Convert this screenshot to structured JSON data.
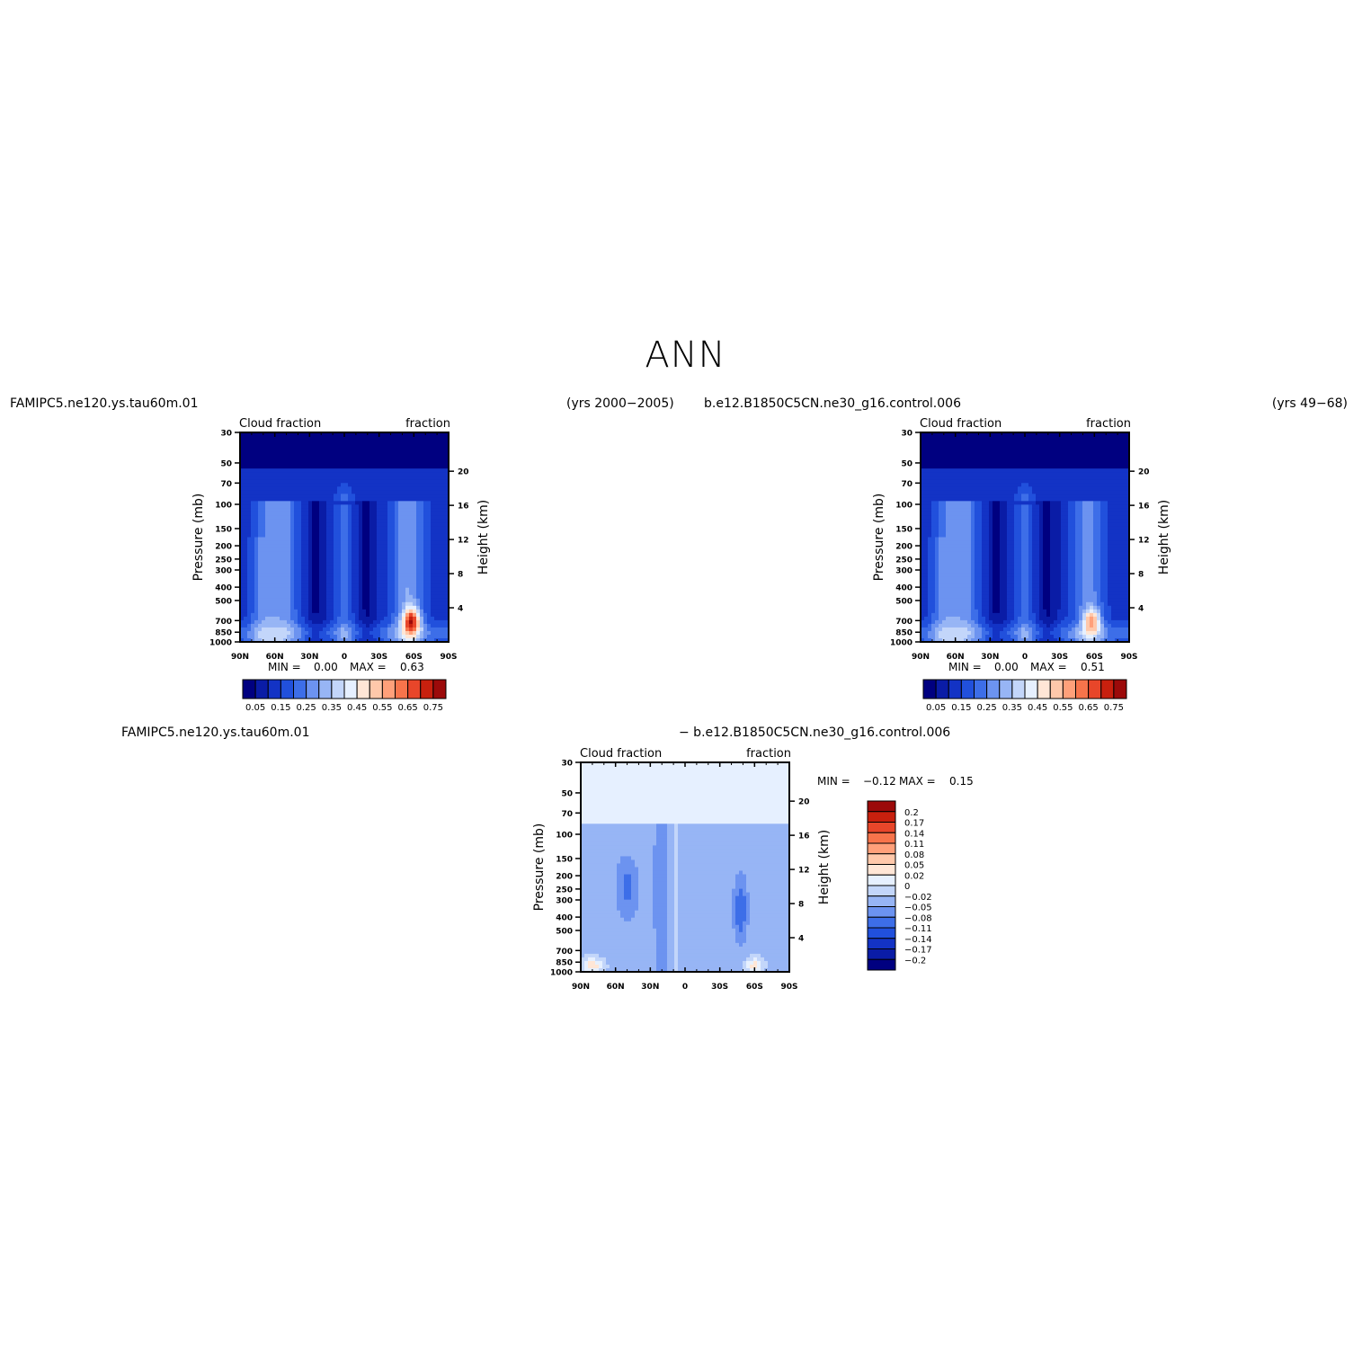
{
  "page_title": "ANN",
  "top_captions": {
    "left_case": "FAMIPC5.ne120.ys.tau60m.01",
    "left_years": "(yrs 2000−2005)",
    "right_case": "b.e12.B1850C5CN.ne30_g16.control.006",
    "right_years": "(yrs 49−68)"
  },
  "diff_captions": {
    "left": "FAMIPC5.ne120.ys.tau60m.01",
    "right": "− b.e12.B1850C5CN.ne30_g16.control.006"
  },
  "colors": {
    "abs_palette": [
      "#000080",
      "#0a1ca6",
      "#1333c5",
      "#2150dc",
      "#3d6ee8",
      "#6c93f0",
      "#97b5f5",
      "#c3d6fa",
      "#e6f0ff",
      "#ffe6d6",
      "#ffc8aa",
      "#ffa07a",
      "#f7744b",
      "#e8462a",
      "#c8200e",
      "#9c0a0a"
    ],
    "diff_palette": [
      "#000080",
      "#0a1ca6",
      "#1333c5",
      "#2150dc",
      "#3d6ee8",
      "#6c93f0",
      "#97b5f5",
      "#c3d6fa",
      "#e6f0ff",
      "#ffe6d6",
      "#ffc8aa",
      "#ffa07a",
      "#f7744b",
      "#e8462a",
      "#c8200e",
      "#9c0a0a"
    ]
  },
  "chart_data": [
    {
      "type": "heatmap",
      "title_left": "Cloud fraction",
      "title_right": "fraction",
      "xlabel": "",
      "ylabel": "Pressure (mb)",
      "ylabel_right": "Height (km)",
      "x_ticks": [
        "90N",
        "60N",
        "30N",
        "0",
        "30S",
        "60S",
        "90S"
      ],
      "y_ticks": [
        30,
        50,
        70,
        100,
        150,
        200,
        250,
        300,
        400,
        500,
        700,
        850,
        1000
      ],
      "y_ticks_right": [
        20,
        16,
        12,
        8,
        4
      ],
      "xlim": [
        90,
        -90
      ],
      "ylim": [
        1000,
        30
      ],
      "y_scale": "log",
      "min_label": "MIN =",
      "min_value": "0.00",
      "max_label": "MAX =",
      "max_value": "0.63",
      "colorbar_labels": [
        "0.05",
        "0.15",
        "0.25",
        "0.35",
        "0.45",
        "0.55",
        "0.65",
        "0.75"
      ]
    },
    {
      "type": "heatmap",
      "title_left": "Cloud fraction",
      "title_right": "fraction",
      "xlabel": "",
      "ylabel": "Pressure (mb)",
      "ylabel_right": "Height (km)",
      "x_ticks": [
        "90N",
        "60N",
        "30N",
        "0",
        "30S",
        "60S",
        "90S"
      ],
      "y_ticks": [
        30,
        50,
        70,
        100,
        150,
        200,
        250,
        300,
        400,
        500,
        700,
        850,
        1000
      ],
      "y_ticks_right": [
        20,
        16,
        12,
        8,
        4
      ],
      "xlim": [
        90,
        -90
      ],
      "ylim": [
        1000,
        30
      ],
      "y_scale": "log",
      "min_label": "MIN =",
      "min_value": "0.00",
      "max_label": "MAX =",
      "max_value": "0.51",
      "colorbar_labels": [
        "0.05",
        "0.15",
        "0.25",
        "0.35",
        "0.45",
        "0.55",
        "0.65",
        "0.75"
      ]
    },
    {
      "type": "heatmap",
      "title_left": "Cloud fraction",
      "title_right": "fraction",
      "xlabel": "",
      "ylabel": "Pressure (mb)",
      "ylabel_right": "Height (km)",
      "x_ticks": [
        "90N",
        "60N",
        "30N",
        "0",
        "30S",
        "60S",
        "90S"
      ],
      "y_ticks": [
        30,
        50,
        70,
        100,
        150,
        200,
        250,
        300,
        400,
        500,
        700,
        850,
        1000
      ],
      "y_ticks_right": [
        20,
        16,
        12,
        8,
        4
      ],
      "xlim": [
        90,
        -90
      ],
      "ylim": [
        1000,
        30
      ],
      "y_scale": "log",
      "min_label": "MIN =",
      "min_value": "−0.12",
      "max_label": "MAX =",
      "max_value": "0.15",
      "colorbar_labels": [
        "0.2",
        "0.17",
        "0.14",
        "0.11",
        "0.08",
        "0.05",
        "0.02",
        "0",
        "−0.02",
        "−0.05",
        "−0.08",
        "−0.11",
        "−0.14",
        "−0.17",
        "−0.2"
      ]
    }
  ]
}
